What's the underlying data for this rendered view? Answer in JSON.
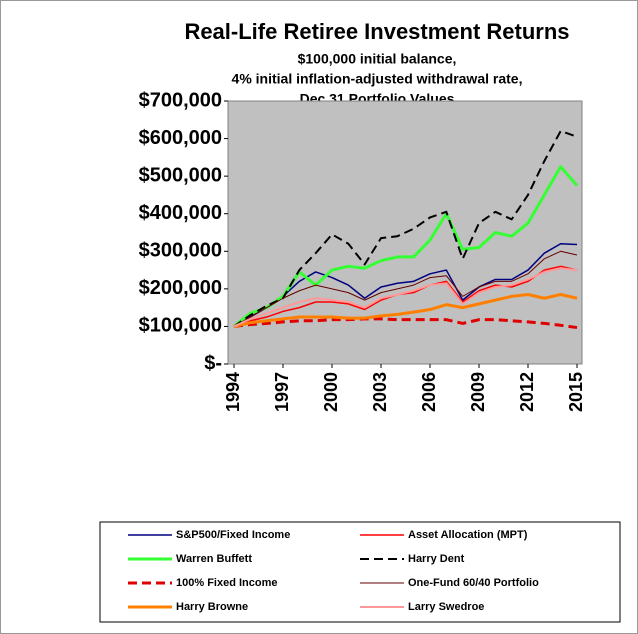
{
  "chart_data": {
    "type": "line",
    "title": "Real-Life Retiree Investment Returns",
    "subtitle": [
      "$100,000 initial balance,",
      "4% initial inflation-adjusted withdrawal rate,",
      "Dec 31 Portfolio Values"
    ],
    "x": [
      1994,
      1995,
      1996,
      1997,
      1998,
      1999,
      2000,
      2001,
      2002,
      2003,
      2004,
      2005,
      2006,
      2007,
      2008,
      2009,
      2010,
      2011,
      2012,
      2013,
      2014,
      2015
    ],
    "xlim": [
      1994,
      2015
    ],
    "xticks": [
      1994,
      1997,
      2000,
      2003,
      2006,
      2009,
      2012,
      2015
    ],
    "ylim": [
      0,
      700000
    ],
    "yticks": [
      {
        "value": 0,
        "label": "$-"
      },
      {
        "value": 100000,
        "label": "$100,000"
      },
      {
        "value": 200000,
        "label": "$200,000"
      },
      {
        "value": 300000,
        "label": "$300,000"
      },
      {
        "value": 400000,
        "label": "$400,000"
      },
      {
        "value": 500000,
        "label": "$500,000"
      },
      {
        "value": 600000,
        "label": "$600,000"
      },
      {
        "value": 700000,
        "label": "$700,000"
      }
    ],
    "grid": false,
    "plot_background": "#c0c0c0",
    "series": [
      {
        "name": "S&P500/Fixed Income",
        "color": "#000080",
        "line_width": 1.5,
        "dash": false,
        "values": [
          100000,
          125000,
          150000,
          180000,
          220000,
          245000,
          230000,
          210000,
          175000,
          205000,
          215000,
          220000,
          240000,
          250000,
          170000,
          205000,
          225000,
          225000,
          250000,
          295000,
          320000,
          318000
        ]
      },
      {
        "name": "Asset Allocation (MPT)",
        "color": "#ff0000",
        "line_width": 1.5,
        "dash": false,
        "values": [
          100000,
          115000,
          125000,
          140000,
          150000,
          165000,
          165000,
          160000,
          145000,
          170000,
          185000,
          190000,
          210000,
          220000,
          165000,
          195000,
          210000,
          205000,
          220000,
          250000,
          260000,
          250000
        ]
      },
      {
        "name": "Warren Buffett",
        "color": "#33ff33",
        "line_width": 3,
        "dash": false,
        "values": [
          100000,
          135000,
          150000,
          180000,
          245000,
          210000,
          250000,
          260000,
          255000,
          275000,
          285000,
          285000,
          330000,
          400000,
          305000,
          310000,
          350000,
          340000,
          375000,
          450000,
          525000,
          475000
        ]
      },
      {
        "name": "Harry Dent",
        "color": "#000000",
        "line_width": 2,
        "dash": true,
        "values": [
          100000,
          130000,
          155000,
          175000,
          250000,
          295000,
          345000,
          320000,
          265000,
          335000,
          340000,
          360000,
          390000,
          405000,
          280000,
          375000,
          405000,
          385000,
          450000,
          540000,
          620000,
          605000
        ]
      },
      {
        "name": "100% Fixed Income",
        "color": "#e00000",
        "line_width": 3,
        "dash": true,
        "values": [
          100000,
          105000,
          108000,
          112000,
          115000,
          115000,
          118000,
          118000,
          120000,
          120000,
          118000,
          118000,
          118000,
          118000,
          108000,
          118000,
          118000,
          115000,
          112000,
          108000,
          103000,
          97000
        ]
      },
      {
        "name": "One-Fund 60/40 Portfolio",
        "color": "#660000",
        "line_width": 1,
        "dash": false,
        "values": [
          100000,
          125000,
          150000,
          175000,
          195000,
          210000,
          200000,
          190000,
          170000,
          190000,
          200000,
          210000,
          230000,
          235000,
          180000,
          205000,
          220000,
          220000,
          240000,
          280000,
          300000,
          290000
        ]
      },
      {
        "name": "Harry Browne",
        "color": "#ff8000",
        "line_width": 3,
        "dash": false,
        "values": [
          100000,
          110000,
          115000,
          120000,
          125000,
          125000,
          125000,
          122000,
          122000,
          128000,
          132000,
          138000,
          145000,
          158000,
          150000,
          160000,
          170000,
          180000,
          185000,
          175000,
          185000,
          175000
        ]
      },
      {
        "name": "Larry Swedroe",
        "color": "#ff9999",
        "line_width": 2,
        "dash": false,
        "values": [
          100000,
          120000,
          135000,
          150000,
          165000,
          175000,
          170000,
          165000,
          150000,
          175000,
          185000,
          195000,
          210000,
          215000,
          160000,
          190000,
          205000,
          210000,
          225000,
          245000,
          255000,
          250000
        ]
      }
    ]
  }
}
